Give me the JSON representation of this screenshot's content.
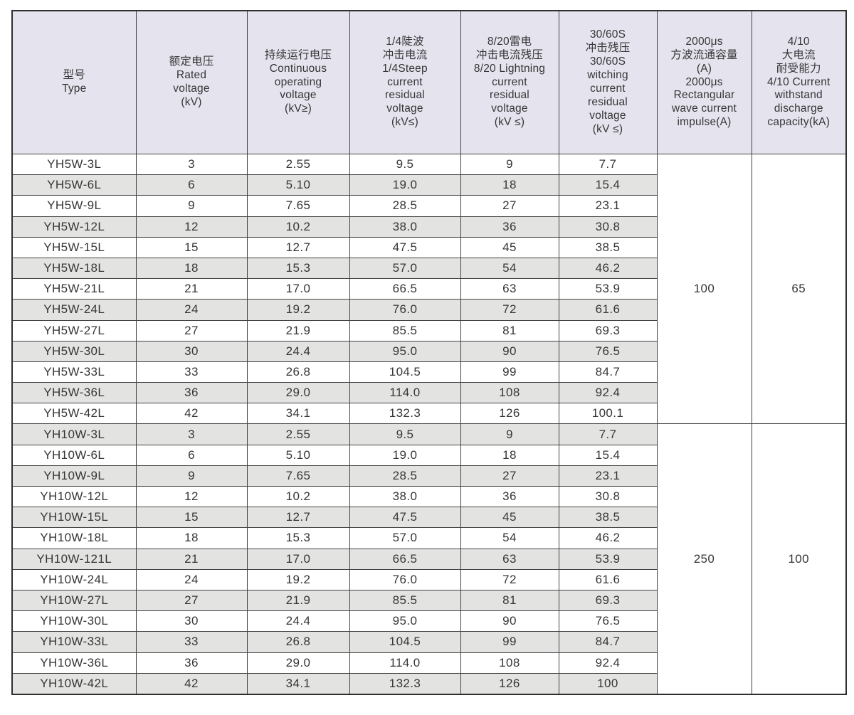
{
  "colors": {
    "header_bg": "#e5e3ee",
    "stripe_bg": "#e3e3e2",
    "border": "#424242",
    "text": "#363636"
  },
  "table": {
    "columns": [
      {
        "id": "type",
        "header": "型号\nType"
      },
      {
        "id": "rated-voltage",
        "header": "额定电压\nRated\nvoltage\n(kV)"
      },
      {
        "id": "continuous-operating-voltage",
        "header": "持续运行电压\nContinuous\noperating\nvoltage\n(kV≥)"
      },
      {
        "id": "steep-current-residual-voltage",
        "header": "1/4陡波\n冲击电流\n1/4Steep\ncurrent\nresidual\nvoltage\n(kV≤)"
      },
      {
        "id": "lightning-current-residual-voltage",
        "header": "8/20雷电\n冲击电流残压\n8/20 Lightning\ncurrent\nresidual\nvoltage\n(kV ≤)"
      },
      {
        "id": "switching-current-residual-voltage",
        "header": "30/60S\n冲击残压\n30/60S\nwitching\ncurrent\nresidual\nvoltage\n(kV ≤)"
      },
      {
        "id": "rectangular-wave-impulse",
        "header": "2000μs\n方波流通容量\n(A)\n2000μs\nRectangular\nwave current\nimpulse(A)"
      },
      {
        "id": "high-current-withstand",
        "header": "4/10\n大电流\n耐受能力\n4/10 Current\nwithstand\ndischarge\ncapacity(kA)"
      }
    ],
    "groups": [
      {
        "name": "YH5W",
        "square_wave_capacity": "100",
        "high_current_withstand": "65",
        "rows": [
          {
            "type": "YH5W-3L",
            "rated_voltage": "3",
            "continuous_operating_voltage": "2.55",
            "steep_residual": "9.5",
            "lightning_residual": "9",
            "switching_residual": "7.7"
          },
          {
            "type": "YH5W-6L",
            "rated_voltage": "6",
            "continuous_operating_voltage": "5.10",
            "steep_residual": "19.0",
            "lightning_residual": "18",
            "switching_residual": "15.4"
          },
          {
            "type": "YH5W-9L",
            "rated_voltage": "9",
            "continuous_operating_voltage": "7.65",
            "steep_residual": "28.5",
            "lightning_residual": "27",
            "switching_residual": "23.1"
          },
          {
            "type": "YH5W-12L",
            "rated_voltage": "12",
            "continuous_operating_voltage": "10.2",
            "steep_residual": "38.0",
            "lightning_residual": "36",
            "switching_residual": "30.8"
          },
          {
            "type": "YH5W-15L",
            "rated_voltage": "15",
            "continuous_operating_voltage": "12.7",
            "steep_residual": "47.5",
            "lightning_residual": "45",
            "switching_residual": "38.5"
          },
          {
            "type": "YH5W-18L",
            "rated_voltage": "18",
            "continuous_operating_voltage": "15.3",
            "steep_residual": "57.0",
            "lightning_residual": "54",
            "switching_residual": "46.2"
          },
          {
            "type": "YH5W-21L",
            "rated_voltage": "21",
            "continuous_operating_voltage": "17.0",
            "steep_residual": "66.5",
            "lightning_residual": "63",
            "switching_residual": "53.9"
          },
          {
            "type": "YH5W-24L",
            "rated_voltage": "24",
            "continuous_operating_voltage": "19.2",
            "steep_residual": "76.0",
            "lightning_residual": "72",
            "switching_residual": "61.6"
          },
          {
            "type": "YH5W-27L",
            "rated_voltage": "27",
            "continuous_operating_voltage": "21.9",
            "steep_residual": "85.5",
            "lightning_residual": "81",
            "switching_residual": "69.3"
          },
          {
            "type": "YH5W-30L",
            "rated_voltage": "30",
            "continuous_operating_voltage": "24.4",
            "steep_residual": "95.0",
            "lightning_residual": "90",
            "switching_residual": "76.5"
          },
          {
            "type": "YH5W-33L",
            "rated_voltage": "33",
            "continuous_operating_voltage": "26.8",
            "steep_residual": "104.5",
            "lightning_residual": "99",
            "switching_residual": "84.7"
          },
          {
            "type": "YH5W-36L",
            "rated_voltage": "36",
            "continuous_operating_voltage": "29.0",
            "steep_residual": "114.0",
            "lightning_residual": "108",
            "switching_residual": "92.4"
          },
          {
            "type": "YH5W-42L",
            "rated_voltage": "42",
            "continuous_operating_voltage": "34.1",
            "steep_residual": "132.3",
            "lightning_residual": "126",
            "switching_residual": "100.1"
          }
        ]
      },
      {
        "name": "YH10W",
        "square_wave_capacity": "250",
        "high_current_withstand": "100",
        "rows": [
          {
            "type": "YH10W-3L",
            "rated_voltage": "3",
            "continuous_operating_voltage": "2.55",
            "steep_residual": "9.5",
            "lightning_residual": "9",
            "switching_residual": "7.7"
          },
          {
            "type": "YH10W-6L",
            "rated_voltage": "6",
            "continuous_operating_voltage": "5.10",
            "steep_residual": "19.0",
            "lightning_residual": "18",
            "switching_residual": "15.4"
          },
          {
            "type": "YH10W-9L",
            "rated_voltage": "9",
            "continuous_operating_voltage": "7.65",
            "steep_residual": "28.5",
            "lightning_residual": "27",
            "switching_residual": "23.1"
          },
          {
            "type": "YH10W-12L",
            "rated_voltage": "12",
            "continuous_operating_voltage": "10.2",
            "steep_residual": "38.0",
            "lightning_residual": "36",
            "switching_residual": "30.8"
          },
          {
            "type": "YH10W-15L",
            "rated_voltage": "15",
            "continuous_operating_voltage": "12.7",
            "steep_residual": "47.5",
            "lightning_residual": "45",
            "switching_residual": "38.5"
          },
          {
            "type": "YH10W-18L",
            "rated_voltage": "18",
            "continuous_operating_voltage": "15.3",
            "steep_residual": "57.0",
            "lightning_residual": "54",
            "switching_residual": "46.2"
          },
          {
            "type": "YH10W-121L",
            "rated_voltage": "21",
            "continuous_operating_voltage": "17.0",
            "steep_residual": "66.5",
            "lightning_residual": "63",
            "switching_residual": "53.9"
          },
          {
            "type": "YH10W-24L",
            "rated_voltage": "24",
            "continuous_operating_voltage": "19.2",
            "steep_residual": "76.0",
            "lightning_residual": "72",
            "switching_residual": "61.6"
          },
          {
            "type": "YH10W-27L",
            "rated_voltage": "27",
            "continuous_operating_voltage": "21.9",
            "steep_residual": "85.5",
            "lightning_residual": "81",
            "switching_residual": "69.3"
          },
          {
            "type": "YH10W-30L",
            "rated_voltage": "30",
            "continuous_operating_voltage": "24.4",
            "steep_residual": "95.0",
            "lightning_residual": "90",
            "switching_residual": "76.5"
          },
          {
            "type": "YH10W-33L",
            "rated_voltage": "33",
            "continuous_operating_voltage": "26.8",
            "steep_residual": "104.5",
            "lightning_residual": "99",
            "switching_residual": "84.7"
          },
          {
            "type": "YH10W-36L",
            "rated_voltage": "36",
            "continuous_operating_voltage": "29.0",
            "steep_residual": "114.0",
            "lightning_residual": "108",
            "switching_residual": "92.4"
          },
          {
            "type": "YH10W-42L",
            "rated_voltage": "42",
            "continuous_operating_voltage": "34.1",
            "steep_residual": "132.3",
            "lightning_residual": "126",
            "switching_residual": "100"
          }
        ]
      }
    ]
  }
}
